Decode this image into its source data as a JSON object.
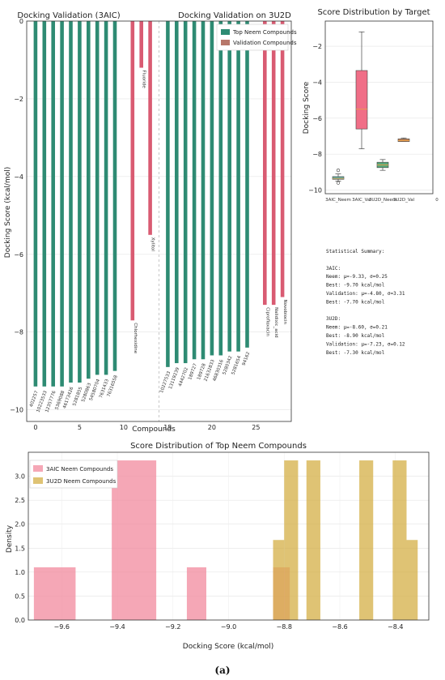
{
  "figure": {
    "caption": "(a)",
    "colors": {
      "neem": "#2e8b73",
      "validation": "#d95b72",
      "hist_3aic": "#f28a9e",
      "hist_3u2d": "#d4af46",
      "box_neem_3u2d": "#5aa87a",
      "box_val_3aic": "#f06e87"
    }
  },
  "chart_data": [
    {
      "type": "bar",
      "panel": "docking-validation",
      "title_left": "Docking Validation (3AIC)",
      "title_right": "Docking Validation on 3U2D",
      "xlabel": "Compounds",
      "ylabel": "Docking Score (kcal/mol)",
      "xlim": [
        -1,
        29
      ],
      "ylim": [
        -10.3,
        0
      ],
      "xticks": [
        0,
        5,
        10,
        15,
        20,
        25
      ],
      "yticks": [
        0,
        -2,
        -4,
        -6,
        -8,
        -10
      ],
      "legend": {
        "position": "top-right",
        "entries": [
          "Top Neem Compounds",
          "Validation Compounds"
        ]
      },
      "bars": [
        {
          "x": 0,
          "value": -9.4,
          "label": "402257",
          "group": "neem"
        },
        {
          "x": 1,
          "value": -9.4,
          "label": "10223533",
          "group": "neem"
        },
        {
          "x": 2,
          "value": -9.4,
          "label": "12357776",
          "group": "neem"
        },
        {
          "x": 3,
          "value": -9.4,
          "label": "5369088",
          "group": "neem"
        },
        {
          "x": 4,
          "value": -9.3,
          "label": "46173426",
          "group": "neem"
        },
        {
          "x": 5,
          "value": -9.3,
          "label": "5281855",
          "group": "neem"
        },
        {
          "x": 6,
          "value": -9.2,
          "label": "5280863",
          "group": "neem"
        },
        {
          "x": 7,
          "value": -9.1,
          "label": "54580704",
          "group": "neem"
        },
        {
          "x": 8,
          "value": -9.1,
          "label": "7631433",
          "group": "neem"
        },
        {
          "x": 9,
          "value": -9.0,
          "label": "76316558",
          "group": "neem"
        },
        {
          "x": 11,
          "value": -7.7,
          "label": "Chlorhexidine",
          "group": "validation"
        },
        {
          "x": 12,
          "value": -1.2,
          "label": "Fluoride",
          "group": "validation"
        },
        {
          "x": 13,
          "value": -5.5,
          "label": "Xylitol",
          "group": "validation"
        },
        {
          "x": 15,
          "value": -8.9,
          "label": "10227533",
          "group": "neem"
        },
        {
          "x": 16,
          "value": -8.8,
          "label": "13119239",
          "group": "neem"
        },
        {
          "x": 17,
          "value": -8.8,
          "label": "4442702",
          "group": "neem"
        },
        {
          "x": 18,
          "value": -8.7,
          "label": "189727",
          "group": "neem"
        },
        {
          "x": 19,
          "value": -8.7,
          "label": "189728",
          "group": "neem"
        },
        {
          "x": 20,
          "value": -8.6,
          "label": "21632833",
          "group": "neem"
        },
        {
          "x": 21,
          "value": -8.6,
          "label": "46830316",
          "group": "neem"
        },
        {
          "x": 22,
          "value": -8.5,
          "label": "5280342",
          "group": "neem"
        },
        {
          "x": 23,
          "value": -8.5,
          "label": "5281654",
          "group": "neem"
        },
        {
          "x": 24,
          "value": -8.4,
          "label": "94162",
          "group": "neem"
        },
        {
          "x": 26,
          "value": -7.3,
          "label": "Ciprofloxacin",
          "group": "validation"
        },
        {
          "x": 27,
          "value": -7.3,
          "label": "Nalidixic_acid",
          "group": "validation"
        },
        {
          "x": 28,
          "value": -7.1,
          "label": "Novobiocin",
          "group": "validation"
        }
      ]
    },
    {
      "type": "box",
      "panel": "score-distribution-by-target",
      "title": "Score Distribution by Target",
      "ylabel": "Docking Score",
      "ylim": [
        -10.2,
        -0.6
      ],
      "yticks": [
        -2,
        -4,
        -6,
        -8,
        -10
      ],
      "categories": [
        "3AIC_Neem",
        "3AIC_Val",
        "3U2D_Neem",
        "3U2D_Val"
      ],
      "extra_tick": "0",
      "boxes": [
        {
          "q1": -9.4,
          "median": -9.35,
          "q3": -9.25,
          "whisker_low": -9.5,
          "whisker_high": -9.1,
          "outliers": [
            -8.9,
            -9.6
          ]
        },
        {
          "q1": -6.6,
          "median": -5.5,
          "q3": -3.35,
          "whisker_low": -7.7,
          "whisker_high": -1.2,
          "outliers": []
        },
        {
          "q1": -8.75,
          "median": -8.6,
          "q3": -8.45,
          "whisker_low": -8.9,
          "whisker_high": -8.3,
          "outliers": []
        },
        {
          "q1": -7.3,
          "median": -7.25,
          "q3": -7.15,
          "whisker_low": -7.3,
          "whisker_high": -7.1,
          "outliers": []
        }
      ]
    },
    {
      "type": "histogram",
      "panel": "score-distribution-top-neem",
      "title": "Score Distribution of Top Neem Compounds",
      "xlabel": "Docking Score (kcal/mol)",
      "ylabel": "Density",
      "xlim": [
        -9.72,
        -8.28
      ],
      "ylim": [
        0,
        3.5
      ],
      "xticks": [
        -9.6,
        -9.4,
        -9.2,
        -9.0,
        -8.8,
        -8.6,
        -8.4
      ],
      "xtick_labels": [
        "−9.6",
        "−9.4",
        "−9.2",
        "−9.0",
        "−8.8",
        "−8.6",
        "−8.4"
      ],
      "yticks": [
        0.0,
        0.5,
        1.0,
        1.5,
        2.0,
        2.5,
        3.0
      ],
      "ytick_labels": [
        "0.0",
        "0.5",
        "1.0",
        "1.5",
        "2.0",
        "2.5",
        "3.0"
      ],
      "legend": {
        "position": "top-left",
        "entries": [
          "3AIC Neem Compounds",
          "3U2D Neem Compounds"
        ]
      },
      "series": [
        {
          "name": "3AIC Neem Compounds",
          "bins": [
            {
              "x0": -9.7,
              "x1": -9.55,
              "density": 1.1
            },
            {
              "x0": -9.42,
              "x1": -9.26,
              "density": 3.33
            },
            {
              "x0": -9.15,
              "x1": -9.08,
              "density": 1.1
            },
            {
              "x0": -8.84,
              "x1": -8.78,
              "density": 1.1
            }
          ]
        },
        {
          "name": "3U2D Neem Compounds",
          "bins": [
            {
              "x0": -8.84,
              "x1": -8.8,
              "density": 1.67
            },
            {
              "x0": -8.8,
              "x1": -8.75,
              "density": 3.33
            },
            {
              "x0": -8.72,
              "x1": -8.67,
              "density": 3.33
            },
            {
              "x0": -8.53,
              "x1": -8.48,
              "density": 3.33
            },
            {
              "x0": -8.41,
              "x1": -8.36,
              "density": 3.33
            },
            {
              "x0": -8.36,
              "x1": -8.32,
              "density": 1.67
            }
          ]
        }
      ]
    }
  ],
  "stats": {
    "lines": [
      "Statistical Summary:",
      "",
      "3AIC:",
      "  Neem: μ=-9.33, σ=0.25",
      "  Best: -9.70 kcal/mol",
      "  Validation: μ=-4.80, σ=3.31",
      "  Best: -7.70 kcal/mol",
      "",
      "3U2D:",
      "  Neem: μ=-8.60, σ=0.21",
      "  Best: -8.90 kcal/mol",
      "  Validation: μ=-7.23, σ=0.12",
      "  Best: -7.30 kcal/mol"
    ]
  }
}
